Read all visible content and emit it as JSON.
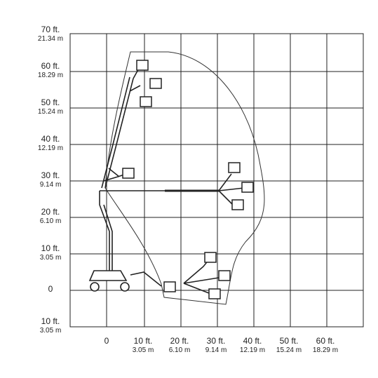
{
  "axes": {
    "y_labels": [
      {
        "ft": "70 ft.",
        "m": "21.34  m"
      },
      {
        "ft": "60 ft.",
        "m": "18.29 m"
      },
      {
        "ft": "50 ft.",
        "m": "15.24 m"
      },
      {
        "ft": "40 ft.",
        "m": "12.19 m"
      },
      {
        "ft": "30 ft.",
        "m": "9.14 m"
      },
      {
        "ft": "20 ft.",
        "m": "6.10 m"
      },
      {
        "ft": "10 ft.",
        "m": "3.05 m"
      },
      {
        "ft": "0"
      },
      {
        "ft": "10 ft.",
        "m": "3.05 m"
      }
    ],
    "x_labels": [
      {
        "ft": "0"
      },
      {
        "ft": "10 ft.",
        "m": "3.05 m"
      },
      {
        "ft": "20 ft.",
        "m": "6.10 m"
      },
      {
        "ft": "30 ft.",
        "m": "9.14 m"
      },
      {
        "ft": "40 ft.",
        "m": "12.19 m"
      },
      {
        "ft": "50 ft.",
        "m": "15.24 m"
      },
      {
        "ft": "60 ft.",
        "m": "18.29 m"
      }
    ]
  }
}
